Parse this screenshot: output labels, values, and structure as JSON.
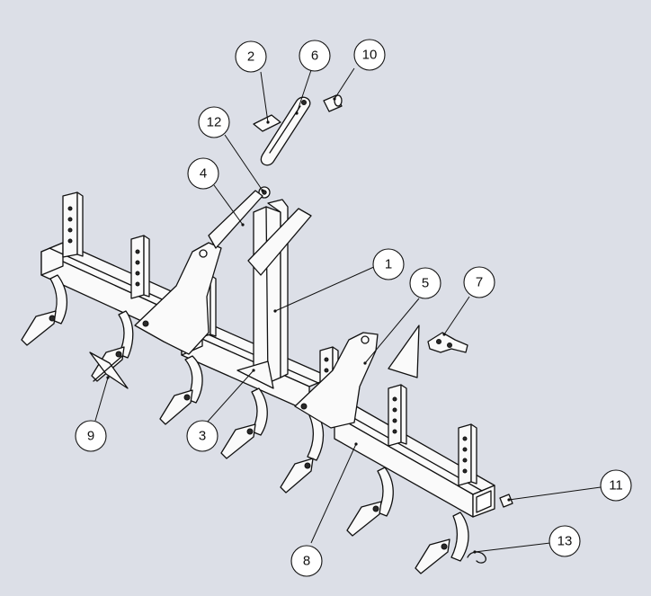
{
  "balloons": [
    {
      "key": "b1",
      "label": "1"
    },
    {
      "key": "b2",
      "label": "2"
    },
    {
      "key": "b3",
      "label": "3"
    },
    {
      "key": "b4",
      "label": "4"
    },
    {
      "key": "b5",
      "label": "5"
    },
    {
      "key": "b6",
      "label": "6"
    },
    {
      "key": "b7",
      "label": "7"
    },
    {
      "key": "b8",
      "label": "8"
    },
    {
      "key": "b9",
      "label": "9"
    },
    {
      "key": "b10",
      "label": "10"
    },
    {
      "key": "b11",
      "label": "11"
    },
    {
      "key": "b12",
      "label": "12"
    },
    {
      "key": "b13",
      "label": "13"
    }
  ],
  "colors": {
    "background": "#dcdfe7",
    "line": "#111111",
    "part_fill": "#fafafa"
  }
}
